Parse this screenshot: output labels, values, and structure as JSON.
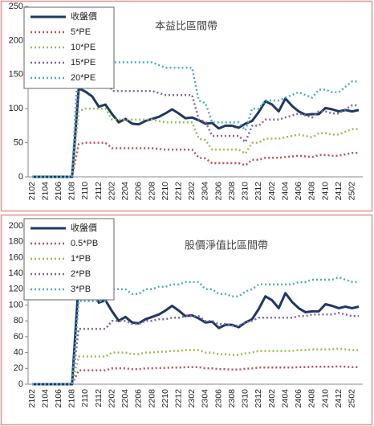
{
  "chart_data": [
    {
      "type": "line",
      "title": "本益比區間帶",
      "categories": [
        "2102",
        null,
        "2104",
        null,
        "2106",
        null,
        "2108",
        null,
        "2110",
        null,
        "2112",
        null,
        "2202",
        null,
        "2204",
        null,
        "2206",
        null,
        "2208",
        null,
        "2210",
        null,
        "2212",
        null,
        "2302",
        null,
        "2304",
        null,
        "2306",
        null,
        "2308",
        null,
        "2310",
        null,
        "2312",
        null,
        "2402",
        null,
        "2404",
        null,
        "2406",
        null,
        "2408",
        null,
        "2410",
        null,
        "2412",
        null,
        "2502",
        null
      ],
      "ylim": [
        0,
        250
      ],
      "yticks": [
        0,
        50,
        100,
        150,
        200,
        250
      ],
      "legend": "upper left",
      "series": [
        {
          "name": "收盤價",
          "color": "#1f3864",
          "style": "solid",
          "values": [
            0,
            0,
            0,
            0,
            0,
            0,
            0,
            130,
            125,
            118,
            103,
            106,
            92,
            80,
            85,
            78,
            77,
            82,
            85,
            88,
            93,
            99,
            93,
            86,
            87,
            83,
            78,
            79,
            71,
            75,
            75,
            72,
            78,
            82,
            95,
            111,
            106,
            96,
            115,
            104,
            96,
            91,
            92,
            92,
            101,
            99,
            96,
            98,
            96,
            98
          ]
        },
        {
          "name": "5*PE",
          "color": "#c0504d",
          "style": "dotted",
          "values": [
            0,
            0,
            0,
            0,
            0,
            0,
            0,
            48,
            50,
            50,
            50,
            50,
            42,
            42,
            42,
            42,
            42,
            42,
            42,
            41,
            40,
            40,
            40,
            40,
            40,
            28,
            27,
            20,
            20,
            20,
            20,
            20,
            17,
            25,
            25,
            28,
            28,
            28,
            29,
            30,
            31,
            30,
            29,
            32,
            32,
            31,
            31,
            33,
            35,
            35
          ]
        },
        {
          "name": "10*PE",
          "color": "#9bbb59",
          "style": "dotted",
          "values": [
            0,
            0,
            0,
            0,
            0,
            0,
            0,
            96,
            100,
            100,
            100,
            100,
            84,
            84,
            84,
            84,
            84,
            84,
            84,
            82,
            80,
            80,
            80,
            80,
            80,
            56,
            54,
            40,
            40,
            40,
            40,
            40,
            34,
            50,
            50,
            56,
            56,
            56,
            58,
            60,
            62,
            60,
            58,
            64,
            64,
            62,
            62,
            66,
            70,
            70
          ]
        },
        {
          "name": "15*PE",
          "color": "#8064a2",
          "style": "dotted",
          "values": [
            0,
            0,
            0,
            0,
            0,
            0,
            0,
            144,
            150,
            150,
            150,
            150,
            126,
            126,
            126,
            126,
            126,
            126,
            126,
            123,
            120,
            120,
            120,
            120,
            120,
            84,
            81,
            60,
            60,
            60,
            60,
            60,
            51,
            75,
            75,
            84,
            84,
            84,
            87,
            90,
            93,
            90,
            87,
            96,
            96,
            93,
            93,
            99,
            105,
            105
          ]
        },
        {
          "name": "20*PE",
          "color": "#4bacc6",
          "style": "dotted",
          "values": [
            0,
            0,
            0,
            0,
            0,
            0,
            0,
            192,
            200,
            200,
            200,
            200,
            168,
            168,
            168,
            168,
            168,
            168,
            168,
            164,
            160,
            160,
            160,
            160,
            160,
            112,
            108,
            80,
            80,
            80,
            80,
            80,
            68,
            100,
            100,
            112,
            112,
            112,
            116,
            120,
            124,
            120,
            116,
            128,
            128,
            124,
            124,
            132,
            140,
            140
          ]
        }
      ]
    },
    {
      "type": "line",
      "title": "股價淨值比區間帶",
      "categories": [
        "2102",
        null,
        "2104",
        null,
        "2106",
        null,
        "2108",
        null,
        "2110",
        null,
        "2112",
        null,
        "2202",
        null,
        "2204",
        null,
        "2206",
        null,
        "2208",
        null,
        "2210",
        null,
        "2212",
        null,
        "2302",
        null,
        "2304",
        null,
        "2306",
        null,
        "2308",
        null,
        "2310",
        null,
        "2312",
        null,
        "2402",
        null,
        "2404",
        null,
        "2406",
        null,
        "2408",
        null,
        "2410",
        null,
        "2412",
        null,
        "2502",
        null
      ],
      "ylim": [
        0,
        200
      ],
      "yticks": [
        0,
        20,
        40,
        60,
        80,
        100,
        120,
        140,
        160,
        180,
        200
      ],
      "legend": "upper left",
      "series": [
        {
          "name": "收盤價",
          "color": "#1f3864",
          "style": "solid",
          "values": [
            0,
            0,
            0,
            0,
            0,
            0,
            0,
            130,
            125,
            118,
            103,
            106,
            92,
            80,
            85,
            78,
            77,
            82,
            85,
            88,
            93,
            99,
            93,
            86,
            87,
            83,
            78,
            79,
            71,
            75,
            75,
            72,
            78,
            82,
            95,
            111,
            106,
            96,
            115,
            104,
            96,
            91,
            92,
            92,
            101,
            99,
            96,
            98,
            96,
            98
          ]
        },
        {
          "name": "0.5*PB",
          "color": "#c0504d",
          "style": "dotted",
          "values": [
            0,
            0,
            0,
            0,
            0,
            0,
            0,
            17.5,
            17.5,
            17.5,
            17.5,
            17.5,
            20,
            20,
            20,
            19,
            19,
            20,
            20,
            20.5,
            20.5,
            21,
            21,
            21.5,
            21.5,
            21.5,
            20,
            20,
            19,
            19,
            18.5,
            18.5,
            19.5,
            20,
            21,
            21,
            21,
            21,
            21,
            21,
            21.5,
            21.5,
            22,
            22,
            22,
            22,
            22.5,
            22,
            21.5,
            21.5
          ]
        },
        {
          "name": "1*PB",
          "color": "#9bbb59",
          "style": "dotted",
          "values": [
            0,
            0,
            0,
            0,
            0,
            0,
            0,
            35,
            35,
            35,
            35,
            35,
            40,
            40,
            40,
            38,
            38,
            40,
            40,
            41,
            41,
            42,
            42,
            43,
            43,
            43,
            40,
            40,
            38,
            38,
            37,
            37,
            39,
            40,
            42,
            42,
            42,
            42,
            42,
            42,
            43,
            43,
            44,
            44,
            44,
            44,
            45,
            44,
            43,
            43
          ]
        },
        {
          "name": "2*PB",
          "color": "#8064a2",
          "style": "dotted",
          "values": [
            0,
            0,
            0,
            0,
            0,
            0,
            0,
            70,
            70,
            70,
            70,
            70,
            80,
            80,
            80,
            76,
            76,
            80,
            80,
            82,
            82,
            84,
            84,
            86,
            86,
            86,
            80,
            80,
            76,
            76,
            74,
            74,
            78,
            80,
            84,
            84,
            84,
            84,
            84,
            84,
            86,
            86,
            88,
            88,
            88,
            88,
            90,
            88,
            86,
            86
          ]
        },
        {
          "name": "3*PB",
          "color": "#4bacc6",
          "style": "dotted",
          "values": [
            0,
            0,
            0,
            0,
            0,
            0,
            0,
            105,
            105,
            105,
            105,
            105,
            120,
            120,
            120,
            114,
            114,
            120,
            120,
            123,
            123,
            126,
            126,
            129,
            129,
            129,
            120,
            120,
            114,
            114,
            111,
            111,
            117,
            120,
            126,
            126,
            126,
            126,
            126,
            126,
            129,
            129,
            132,
            132,
            132,
            132,
            135,
            132,
            129,
            129
          ]
        }
      ]
    }
  ]
}
